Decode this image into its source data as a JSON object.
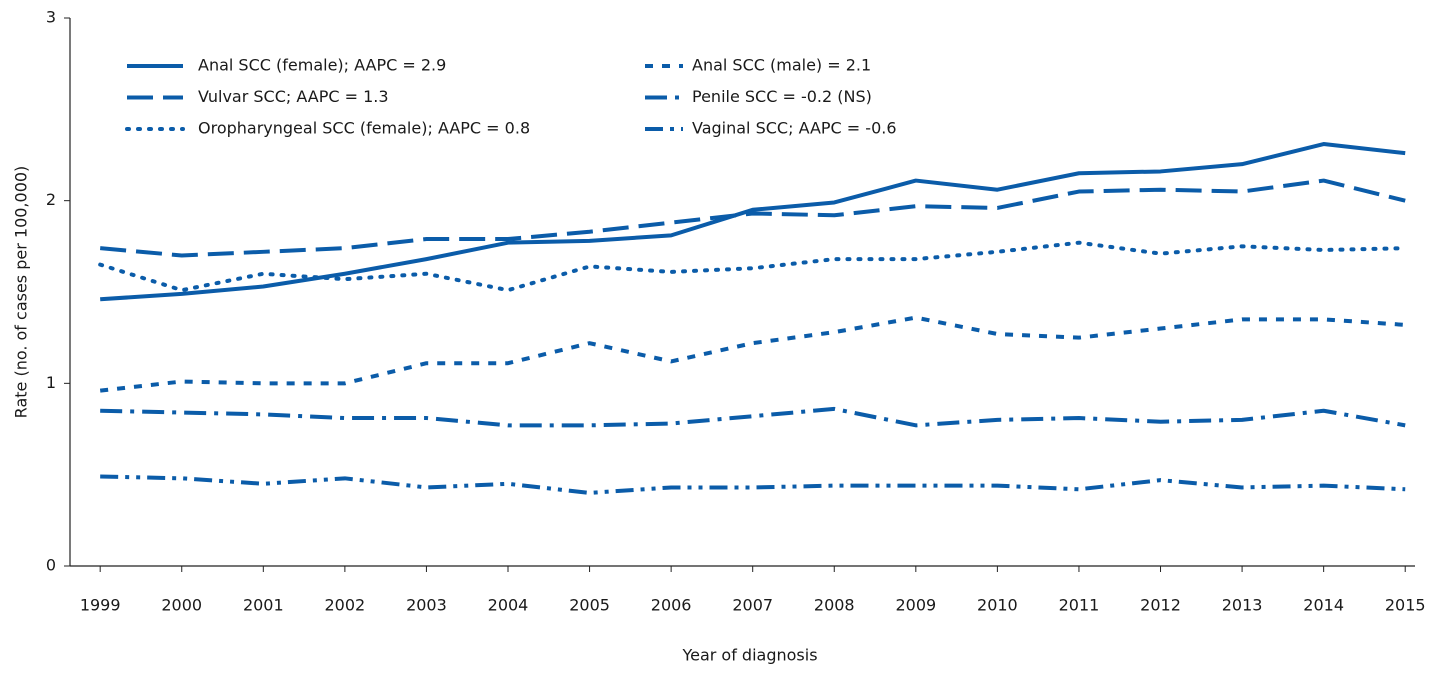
{
  "chart_data": {
    "type": "line",
    "x_label": "Year of diagnosis",
    "y_label": "Rate (no. of cases per 100,000)",
    "x": [
      1999,
      2000,
      2001,
      2002,
      2003,
      2004,
      2005,
      2006,
      2007,
      2008,
      2009,
      2010,
      2011,
      2012,
      2013,
      2014,
      2015
    ],
    "xlim": [
      1998.63,
      2015.12
    ],
    "xticks": [
      1999,
      2000,
      2001,
      2002,
      2003,
      2004,
      2005,
      2006,
      2007,
      2008,
      2009,
      2010,
      2011,
      2012,
      2013,
      2014,
      2015
    ],
    "ylim": [
      0,
      3
    ],
    "yticks": [
      0,
      1,
      2,
      3
    ],
    "grid": false,
    "legend": "top-left",
    "series": [
      {
        "name": "Anal SCC (female); AAPC = 2.9",
        "color": "#0b5ca9",
        "dash": "solid",
        "values": [
          1.46,
          1.49,
          1.53,
          1.6,
          1.68,
          1.77,
          1.78,
          1.81,
          1.95,
          1.99,
          2.11,
          2.06,
          2.15,
          2.16,
          2.2,
          2.31,
          2.26
        ]
      },
      {
        "name": "Anal SCC (male) = 2.1",
        "color": "#0b5ca9",
        "dash": "short-dash",
        "values": [
          0.96,
          1.01,
          1.0,
          1.0,
          1.11,
          1.11,
          1.22,
          1.12,
          1.22,
          1.28,
          1.36,
          1.27,
          1.25,
          1.3,
          1.35,
          1.35,
          1.32
        ]
      },
      {
        "name": "Vulvar SCC; AAPC = 1.3",
        "color": "#0b5ca9",
        "dash": "long-dash",
        "values": [
          1.74,
          1.7,
          1.72,
          1.74,
          1.79,
          1.79,
          1.83,
          1.88,
          1.93,
          1.92,
          1.97,
          1.96,
          2.05,
          2.06,
          2.05,
          2.11,
          2.0
        ]
      },
      {
        "name": "Penile SCC = -0.2 (NS)",
        "color": "#0b5ca9",
        "dash": "dash-dot",
        "values": [
          0.85,
          0.84,
          0.83,
          0.81,
          0.81,
          0.77,
          0.77,
          0.78,
          0.82,
          0.86,
          0.77,
          0.8,
          0.81,
          0.79,
          0.8,
          0.85,
          0.77
        ]
      },
      {
        "name": "Oropharyngeal SCC (female); AAPC = 0.8",
        "color": "#0b5ca9",
        "dash": "dot",
        "values": [
          1.65,
          1.51,
          1.6,
          1.57,
          1.6,
          1.51,
          1.64,
          1.61,
          1.63,
          1.68,
          1.68,
          1.72,
          1.77,
          1.71,
          1.75,
          1.73,
          1.74
        ]
      },
      {
        "name": "Vaginal SCC; AAPC = -0.6",
        "color": "#0b5ca9",
        "dash": "dash-dot-dot",
        "values": [
          0.49,
          0.48,
          0.45,
          0.48,
          0.43,
          0.45,
          0.4,
          0.43,
          0.43,
          0.44,
          0.44,
          0.44,
          0.42,
          0.47,
          0.43,
          0.44,
          0.42
        ]
      }
    ]
  }
}
